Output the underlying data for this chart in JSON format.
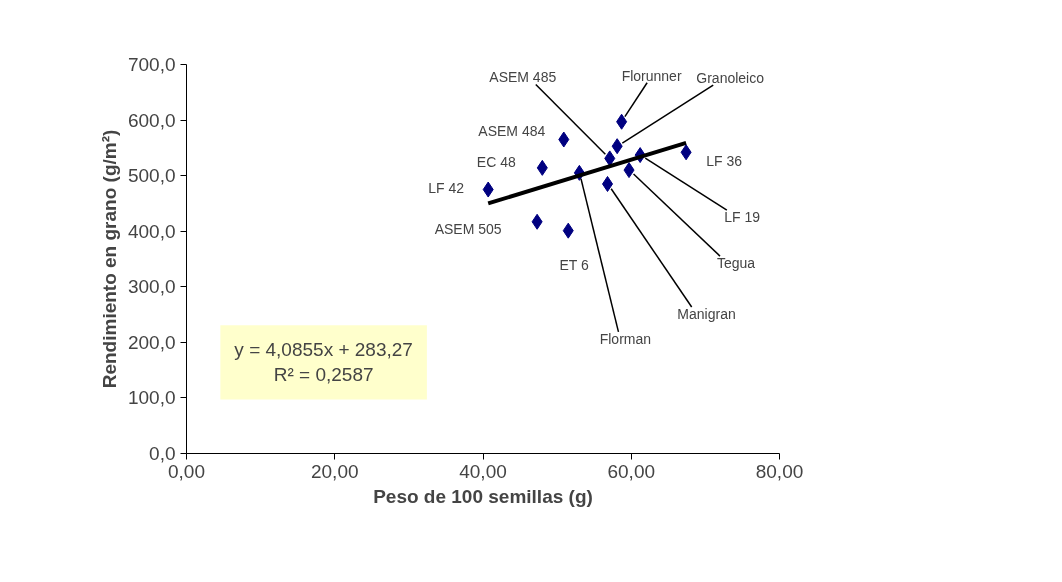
{
  "chart_data": {
    "type": "scatter",
    "xlabel": "Peso de 100 semillas (g)",
    "ylabel": "Rendimiento en grano (g/m²)",
    "xlim": [
      0,
      80
    ],
    "ylim": [
      0,
      700
    ],
    "xticks": [
      {
        "value": 0,
        "label": "0,00"
      },
      {
        "value": 20,
        "label": "20,00"
      },
      {
        "value": 40,
        "label": "40,00"
      },
      {
        "value": 60,
        "label": "60,00"
      },
      {
        "value": 80,
        "label": "80,00"
      }
    ],
    "yticks": [
      {
        "value": 0,
        "label": "0,0"
      },
      {
        "value": 100,
        "label": "100,0"
      },
      {
        "value": 200,
        "label": "200,0"
      },
      {
        "value": 300,
        "label": "300,0"
      },
      {
        "value": 400,
        "label": "400,0"
      },
      {
        "value": 500,
        "label": "500,0"
      },
      {
        "value": 600,
        "label": "600,0"
      },
      {
        "value": 700,
        "label": "700,0"
      }
    ],
    "grid": false,
    "marker": "diamond",
    "series": [
      {
        "color": "#000080",
        "x": [
          58.7,
          58.1,
          57.1,
          67.4,
          61.2,
          59.7,
          56.8,
          53.0,
          50.9,
          48.0,
          40.7,
          47.3,
          51.5
        ],
        "values": [
          597,
          553,
          531,
          542,
          537,
          510,
          485,
          505,
          565,
          514,
          475,
          417,
          401
        ]
      },
      {
        "type": "line",
        "color": "#000000",
        "line_style": "solid",
        "marker": "none",
        "x": [
          40.7,
          67.4
        ],
        "values": [
          450,
          559
        ]
      }
    ],
    "annotations": [
      {
        "text": "Florunner",
        "x": 58.7,
        "y": 597
      },
      {
        "text": "Granoleico",
        "x": 58.1,
        "y": 553
      },
      {
        "text": "ASEM 485",
        "x": 57.1,
        "y": 531
      },
      {
        "text": "LF 36",
        "x": 67.4,
        "y": 542
      },
      {
        "text": "LF 19",
        "x": 61.2,
        "y": 537
      },
      {
        "text": "Tegua",
        "x": 59.7,
        "y": 510
      },
      {
        "text": "Manigran",
        "x": 56.8,
        "y": 485
      },
      {
        "text": "Florman",
        "x": 53.0,
        "y": 505
      },
      {
        "text": "ASEM 484",
        "x": 50.9,
        "y": 565
      },
      {
        "text": "EC 48",
        "x": 48.0,
        "y": 514
      },
      {
        "text": "LF 42",
        "x": 40.7,
        "y": 475
      },
      {
        "text": "ASEM 505",
        "x": 47.3,
        "y": 417
      },
      {
        "text": "ET 6",
        "x": 51.5,
        "y": 401
      },
      "y = 4,0855x + 283,27",
      "R² = 0,2587"
    ]
  }
}
